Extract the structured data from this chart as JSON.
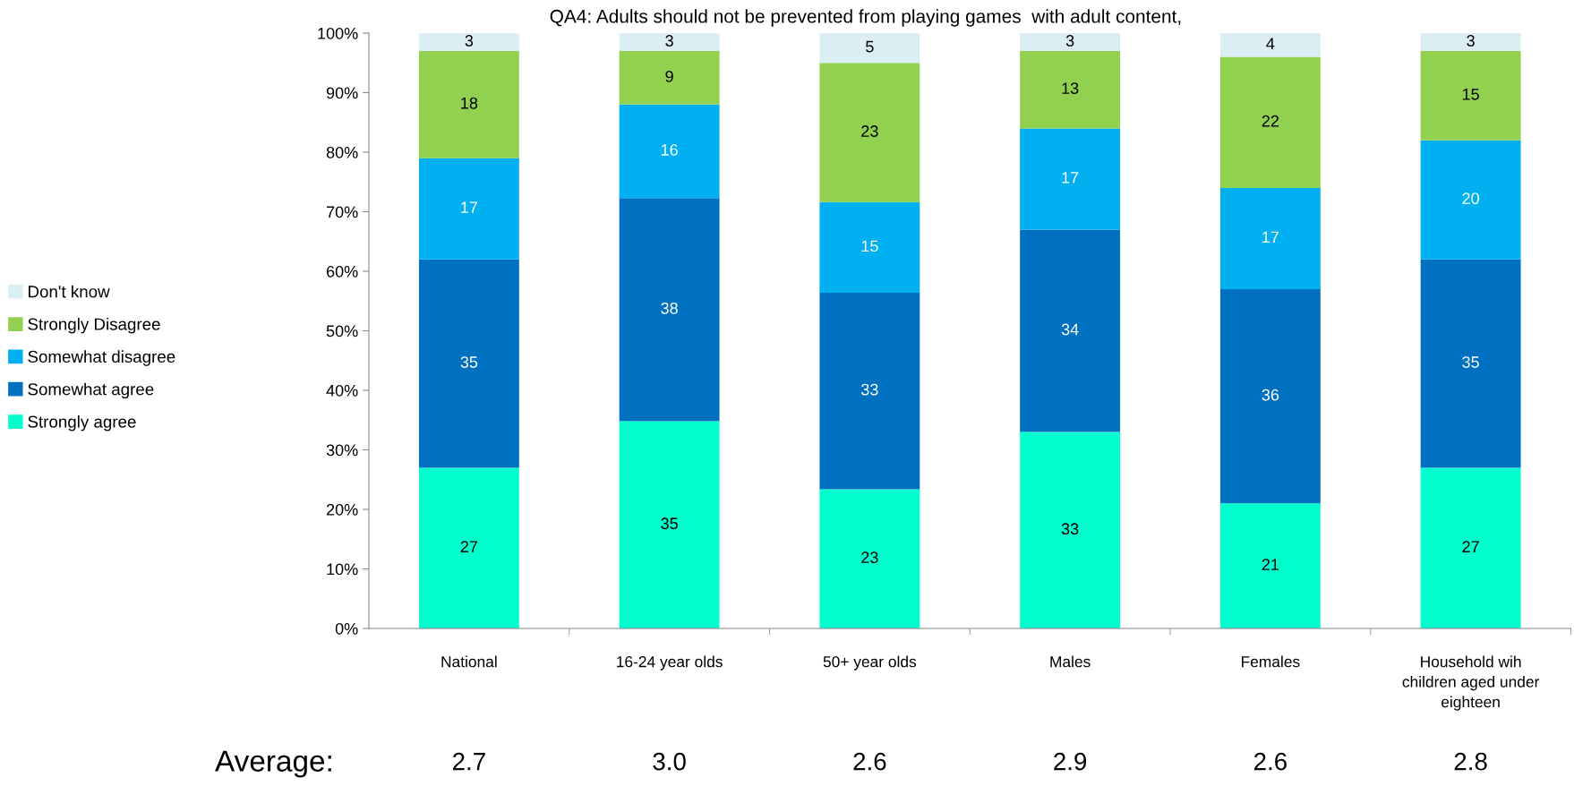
{
  "chart_data": {
    "type": "bar",
    "stacked": true,
    "title": "QA4: Adults should not be prevented from playing games  with adult content,",
    "categories": [
      "National",
      "16-24 year olds",
      "50+ year olds",
      "Males",
      "Females",
      "Household wih\nchildren aged under\neighteen"
    ],
    "series": [
      {
        "name": "Strongly agree",
        "color": "#00ffcc",
        "values": [
          27,
          34.8,
          23.4,
          33,
          21,
          27
        ],
        "value_labels": [
          "27",
          "35",
          "23",
          "33",
          "21",
          "27"
        ]
      },
      {
        "name": "Somewhat agree",
        "color": "#0070c0",
        "values": [
          35,
          37.5,
          33,
          34,
          36,
          35
        ],
        "value_labels": [
          "35",
          "38",
          "33",
          "34",
          "36",
          "35"
        ]
      },
      {
        "name": "Somewhat disagree",
        "color": "#00b0f0",
        "values": [
          17,
          15.7,
          15.2,
          17,
          17,
          20
        ],
        "value_labels": [
          "17",
          "16",
          "15",
          "17",
          "17",
          "20"
        ]
      },
      {
        "name": "Strongly Disagree",
        "color": "#92d050",
        "values": [
          18,
          9,
          23.4,
          13,
          22,
          15
        ],
        "value_labels": [
          "18",
          "9",
          "23",
          "13",
          "22",
          "15"
        ]
      },
      {
        "name": "Don't know",
        "color": "#daeef3",
        "values": [
          3,
          3,
          5,
          3,
          4,
          3
        ]
      }
    ],
    "ylim": [
      0,
      100
    ],
    "yticks": [
      {
        "value": 0,
        "label": "0%"
      },
      {
        "value": 10,
        "label": "10%"
      },
      {
        "value": 20,
        "label": "20%"
      },
      {
        "value": 30,
        "label": "30%"
      },
      {
        "value": 40,
        "label": "40%"
      },
      {
        "value": 50,
        "label": "50%"
      },
      {
        "value": 60,
        "label": "60%"
      },
      {
        "value": 70,
        "label": "70%"
      },
      {
        "value": 80,
        "label": "80%"
      },
      {
        "value": 90,
        "label": "90%"
      },
      {
        "value": 100,
        "label": "100%"
      }
    ],
    "data_labels": true,
    "grid": false,
    "legend": "left",
    "annotations": [
      "Average:",
      "2.7",
      "3.0",
      "2.6",
      "2.9",
      "2.6",
      "2.8"
    ]
  }
}
